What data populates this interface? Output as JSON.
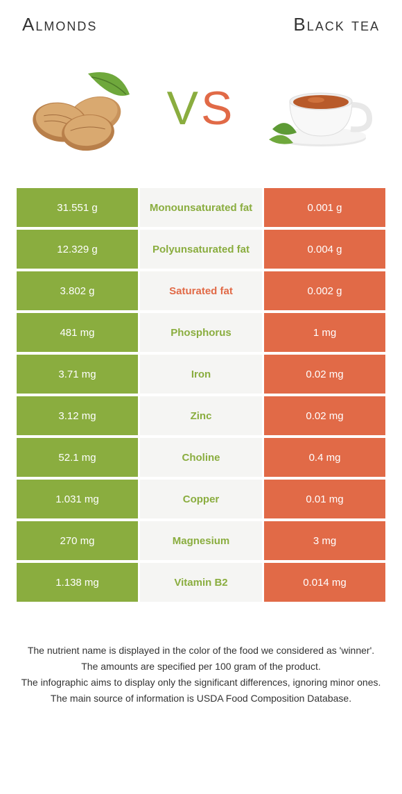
{
  "header": {
    "left": "Almonds",
    "right": "Black tea"
  },
  "vs": {
    "v": "V",
    "s": "S"
  },
  "colors": {
    "left_bg": "#8aad3f",
    "right_bg": "#e16a47",
    "mid_bg": "#f5f5f3",
    "mid_text_left": "#8aad3f",
    "mid_text_right": "#e16a47"
  },
  "rows": [
    {
      "left": "31.551 g",
      "label": "Monounsaturated fat",
      "right": "0.001 g",
      "winner": "left"
    },
    {
      "left": "12.329 g",
      "label": "Polyunsaturated fat",
      "right": "0.004 g",
      "winner": "left"
    },
    {
      "left": "3.802 g",
      "label": "Saturated fat",
      "right": "0.002 g",
      "winner": "right"
    },
    {
      "left": "481 mg",
      "label": "Phosphorus",
      "right": "1 mg",
      "winner": "left"
    },
    {
      "left": "3.71 mg",
      "label": "Iron",
      "right": "0.02 mg",
      "winner": "left"
    },
    {
      "left": "3.12 mg",
      "label": "Zinc",
      "right": "0.02 mg",
      "winner": "left"
    },
    {
      "left": "52.1 mg",
      "label": "Choline",
      "right": "0.4 mg",
      "winner": "left"
    },
    {
      "left": "1.031 mg",
      "label": "Copper",
      "right": "0.01 mg",
      "winner": "left"
    },
    {
      "left": "270 mg",
      "label": "Magnesium",
      "right": "3 mg",
      "winner": "left"
    },
    {
      "left": "1.138 mg",
      "label": "Vitamin B2",
      "right": "0.014 mg",
      "winner": "left"
    }
  ],
  "footnotes": [
    "The nutrient name is displayed in the color of the food we considered as 'winner'.",
    "The amounts are specified per 100 gram of the product.",
    "The infographic aims to display only the significant differences, ignoring minor ones.",
    "The main source of information is USDA Food Composition Database."
  ]
}
